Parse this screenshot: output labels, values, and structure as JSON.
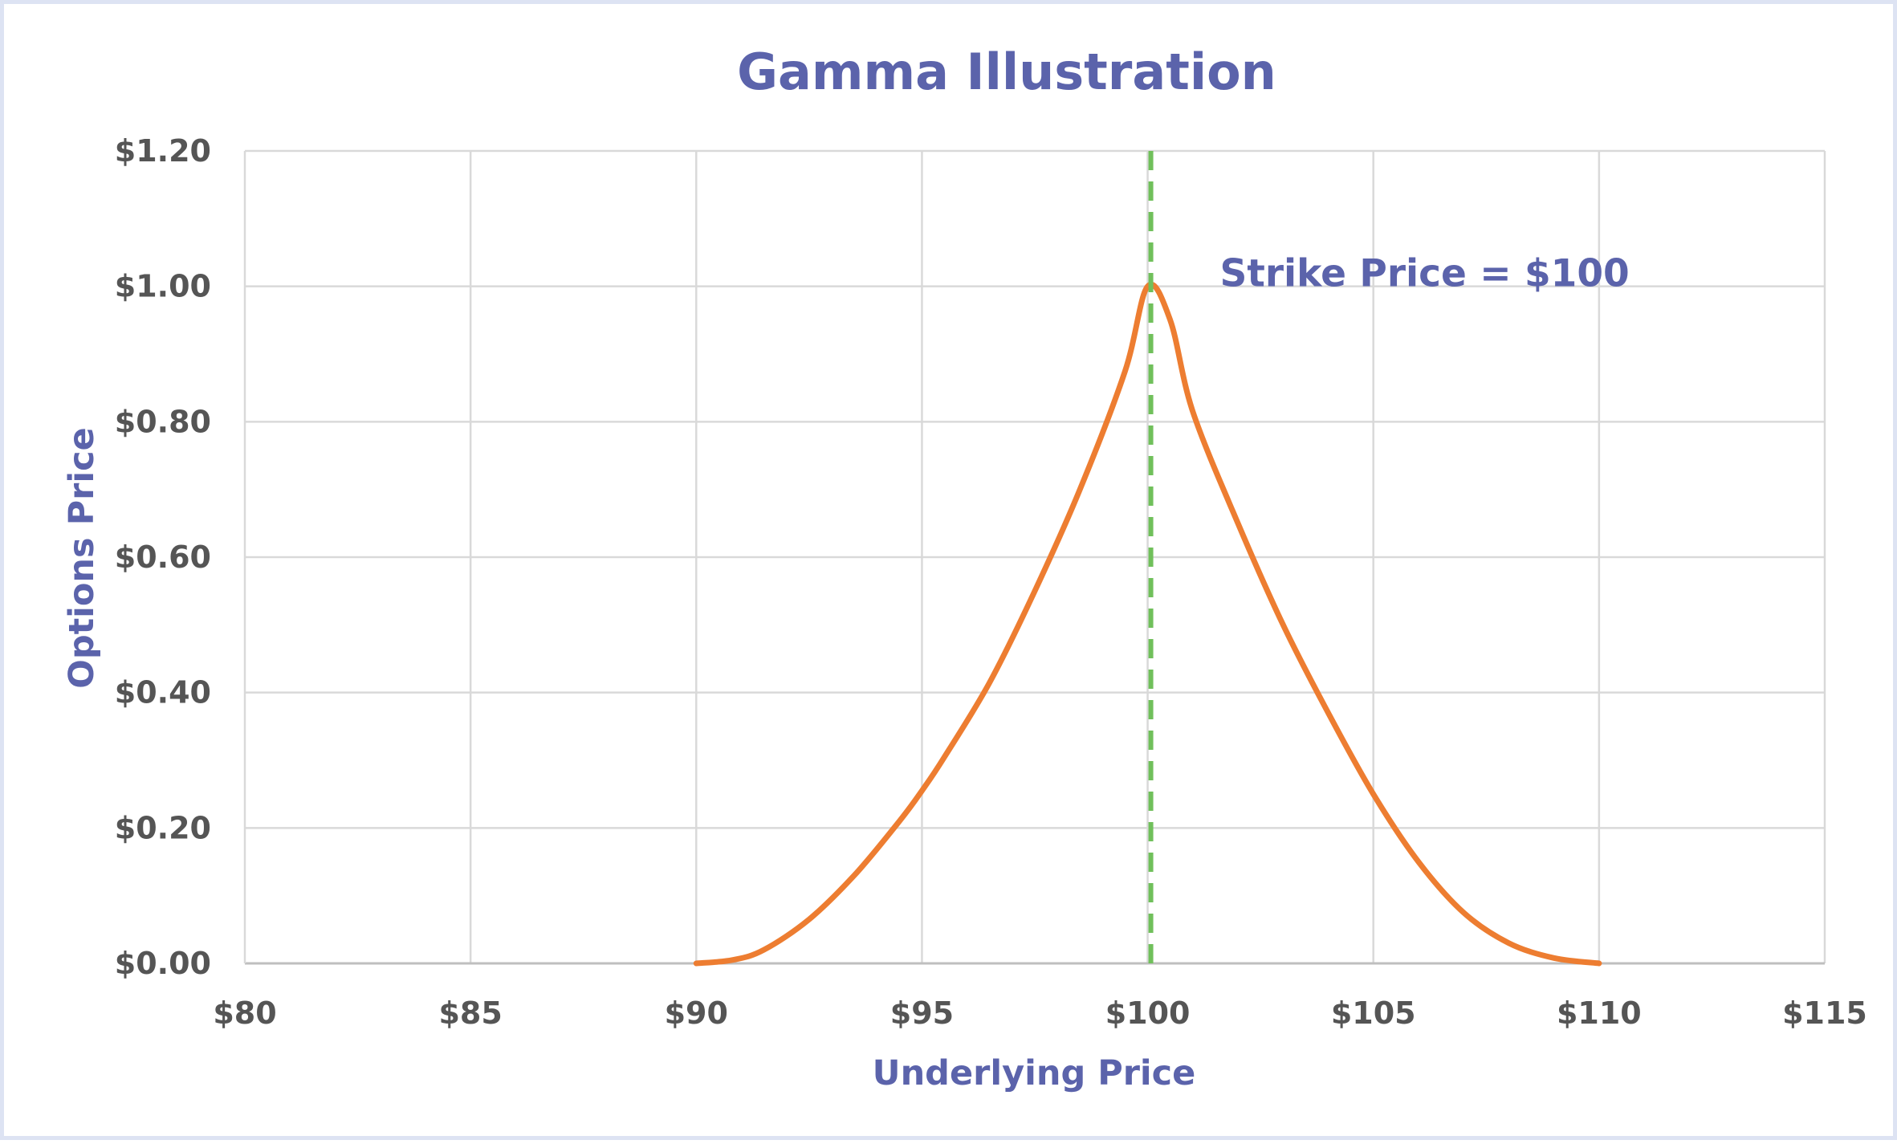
{
  "chart_data": {
    "type": "line",
    "title": "Gamma Illustration",
    "xlabel": "Underlying Price",
    "ylabel": "Options Price",
    "xlim": [
      80,
      115
    ],
    "ylim": [
      0,
      1.2
    ],
    "x_ticks": [
      {
        "value": 80,
        "label": "$80"
      },
      {
        "value": 85,
        "label": "$85"
      },
      {
        "value": 90,
        "label": "$90"
      },
      {
        "value": 95,
        "label": "$95"
      },
      {
        "value": 100,
        "label": "$100"
      },
      {
        "value": 105,
        "label": "$105"
      },
      {
        "value": 110,
        "label": "$110"
      },
      {
        "value": 115,
        "label": "$115"
      }
    ],
    "y_ticks": [
      {
        "value": 0,
        "label": "$0.00"
      },
      {
        "value": 0.2,
        "label": "$0.20"
      },
      {
        "value": 0.4,
        "label": "$0.40"
      },
      {
        "value": 0.6,
        "label": "$0.60"
      },
      {
        "value": 0.8,
        "label": "$0.80"
      },
      {
        "value": 1.0,
        "label": "$1.00"
      },
      {
        "value": 1.2,
        "label": "$1.20"
      }
    ],
    "grid": true,
    "series": [
      {
        "color": "#ed7d31",
        "x": [
          90,
          90.8,
          91.5,
          92.5,
          93.5,
          94.5,
          95,
          95.5,
          96.5,
          97.5,
          98.5,
          99.5,
          100,
          100.5,
          101,
          102,
          103,
          104,
          105,
          106,
          107,
          108,
          109,
          110
        ],
        "y": [
          0.0,
          0.005,
          0.02,
          0.065,
          0.13,
          0.21,
          0.255,
          0.305,
          0.415,
          0.55,
          0.7,
          0.875,
          1.0,
          0.95,
          0.815,
          0.65,
          0.5,
          0.37,
          0.25,
          0.15,
          0.075,
          0.03,
          0.008,
          0.0
        ]
      }
    ],
    "reference_line": {
      "x": 100,
      "color": "#70c05b",
      "style": "dashed"
    },
    "annotations": [
      {
        "text": "Strike Price = $100",
        "x": 101.6,
        "y": 1.0
      }
    ]
  }
}
